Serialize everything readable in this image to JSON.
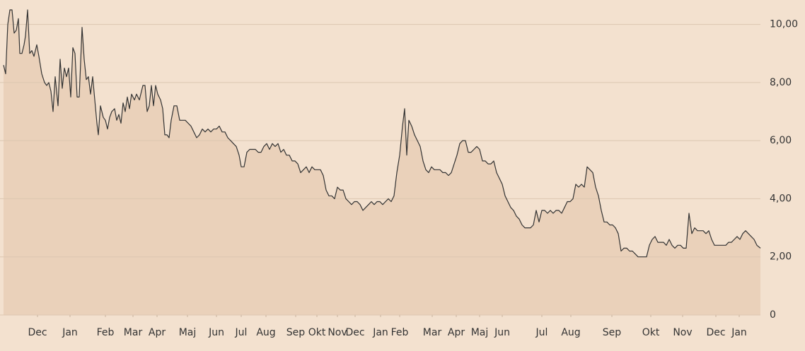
{
  "chart_data": {
    "type": "area",
    "color": "#333333",
    "fill": "#ead1ba",
    "grid": true,
    "xlim": [
      5,
      1075
    ],
    "ylim": [
      0,
      10.5
    ],
    "yticks": [
      0,
      {
        "value": 2,
        "label": "2,00"
      },
      {
        "value": 4,
        "label": "4,00"
      },
      {
        "value": 6,
        "label": "6,00"
      },
      {
        "value": 8,
        "label": "8,00"
      },
      {
        "value": 10,
        "label": "10,00"
      }
    ],
    "xticks": [
      {
        "value": 53,
        "label": "Dec"
      },
      {
        "value": 99,
        "label": "Jan"
      },
      {
        "value": 149,
        "label": "Feb"
      },
      {
        "value": 188,
        "label": "Mar"
      },
      {
        "value": 222,
        "label": "Apr"
      },
      {
        "value": 265,
        "label": "Maj"
      },
      {
        "value": 306,
        "label": "Jun"
      },
      {
        "value": 341,
        "label": "Jul"
      },
      {
        "value": 376,
        "label": "Aug"
      },
      {
        "value": 418,
        "label": "Sep"
      },
      {
        "value": 448,
        "label": "Okt"
      },
      {
        "value": 477,
        "label": "Nov"
      },
      {
        "value": 502,
        "label": "Dec"
      },
      {
        "value": 538,
        "label": "Jan"
      },
      {
        "value": 565,
        "label": "Feb"
      },
      {
        "value": 611,
        "label": "Mar"
      },
      {
        "value": 645,
        "label": "Apr"
      },
      {
        "value": 678,
        "label": "Maj"
      },
      {
        "value": 710,
        "label": "Jun"
      },
      {
        "value": 766,
        "label": "Jul"
      },
      {
        "value": 807,
        "label": "Aug"
      },
      {
        "value": 865,
        "label": "Sep"
      },
      {
        "value": 920,
        "label": "Okt"
      },
      {
        "value": 965,
        "label": "Nov"
      },
      {
        "value": 1012,
        "label": "Dec"
      },
      {
        "value": 1045,
        "label": "Jan"
      }
    ],
    "x": [
      5,
      8,
      11,
      14,
      17,
      20,
      23,
      26,
      28,
      31,
      34,
      36,
      39,
      42,
      45,
      48,
      52,
      55,
      59,
      63,
      66,
      69,
      72,
      75,
      78,
      82,
      85,
      88,
      91,
      94,
      97,
      100,
      103,
      106,
      109,
      112,
      116,
      119,
      122,
      125,
      128,
      131,
      134,
      137,
      139,
      142,
      146,
      149,
      152,
      155,
      158,
      162,
      165,
      168,
      171,
      174,
      177,
      180,
      183,
      186,
      190,
      193,
      197,
      202,
      205,
      208,
      211,
      214,
      217,
      220,
      223,
      227,
      230,
      233,
      236,
      239,
      242,
      246,
      250,
      254,
      258,
      262,
      266,
      270,
      274,
      278,
      282,
      286,
      290,
      294,
      298,
      302,
      306,
      310,
      314,
      318,
      322,
      326,
      330,
      334,
      338,
      341,
      345,
      349,
      353,
      357,
      361,
      365,
      369,
      373,
      377,
      381,
      385,
      389,
      393,
      397,
      401,
      405,
      409,
      413,
      417,
      421,
      425,
      429,
      433,
      437,
      441,
      445,
      449,
      453,
      457,
      461,
      465,
      469,
      473,
      477,
      481,
      485,
      489,
      493,
      497,
      501,
      505,
      509,
      513,
      517,
      521,
      525,
      529,
      533,
      537,
      541,
      545,
      549,
      553,
      557,
      561,
      565,
      569,
      572,
      575,
      578,
      582,
      586,
      590,
      594,
      598,
      602,
      606,
      610,
      614,
      618,
      622,
      626,
      630,
      634,
      638,
      642,
      646,
      650,
      654,
      658,
      662,
      666,
      670,
      674,
      678,
      682,
      686,
      690,
      694,
      698,
      702,
      706,
      710,
      714,
      718,
      722,
      726,
      730,
      734,
      738,
      742,
      746,
      750,
      754,
      758,
      762,
      766,
      770,
      774,
      778,
      782,
      786,
      790,
      794,
      798,
      802,
      806,
      810,
      814,
      818,
      822,
      826,
      830,
      834,
      838,
      842,
      846,
      850,
      854,
      858,
      862,
      866,
      870,
      874,
      878,
      882,
      886,
      890,
      894,
      898,
      902,
      906,
      910,
      914,
      918,
      922,
      926,
      930,
      934,
      938,
      942,
      946,
      950,
      954,
      958,
      962,
      966,
      970,
      974,
      978,
      982,
      986,
      990,
      994,
      998,
      1002,
      1006,
      1010,
      1014,
      1018,
      1022,
      1026,
      1030,
      1034,
      1038,
      1042,
      1046,
      1050,
      1054,
      1058,
      1062,
      1066,
      1070,
      1075
    ],
    "values": [
      8.6,
      8.3,
      10.0,
      10.5,
      10.5,
      9.7,
      9.8,
      10.2,
      9.0,
      9.0,
      9.3,
      9.6,
      10.5,
      9.0,
      9.1,
      8.9,
      9.3,
      8.9,
      8.3,
      8.0,
      7.9,
      8.0,
      7.7,
      7.0,
      8.2,
      7.2,
      8.8,
      7.8,
      8.5,
      8.2,
      8.5,
      7.5,
      9.2,
      9.0,
      7.5,
      7.5,
      9.9,
      8.8,
      8.1,
      8.2,
      7.6,
      8.2,
      7.4,
      6.6,
      6.2,
      7.2,
      6.8,
      6.7,
      6.4,
      6.8,
      7.0,
      7.1,
      6.7,
      6.9,
      6.6,
      7.3,
      7.0,
      7.5,
      7.1,
      7.6,
      7.4,
      7.6,
      7.4,
      7.9,
      7.9,
      7.0,
      7.2,
      7.9,
      7.2,
      7.9,
      7.6,
      7.4,
      7.1,
      6.2,
      6.2,
      6.1,
      6.7,
      7.2,
      7.2,
      6.7,
      6.7,
      6.7,
      6.6,
      6.5,
      6.3,
      6.1,
      6.2,
      6.4,
      6.3,
      6.4,
      6.3,
      6.4,
      6.4,
      6.5,
      6.3,
      6.3,
      6.1,
      6.0,
      5.9,
      5.8,
      5.5,
      5.1,
      5.1,
      5.6,
      5.7,
      5.7,
      5.7,
      5.6,
      5.6,
      5.8,
      5.9,
      5.7,
      5.9,
      5.8,
      5.9,
      5.6,
      5.7,
      5.5,
      5.5,
      5.3,
      5.3,
      5.2,
      4.9,
      5.0,
      5.1,
      4.9,
      5.1,
      5.0,
      5.0,
      5.0,
      4.8,
      4.3,
      4.1,
      4.1,
      4.0,
      4.4,
      4.3,
      4.3,
      4.0,
      3.9,
      3.8,
      3.9,
      3.9,
      3.8,
      3.6,
      3.7,
      3.8,
      3.9,
      3.8,
      3.9,
      3.9,
      3.8,
      3.9,
      4.0,
      3.9,
      4.1,
      4.9,
      5.5,
      6.5,
      7.1,
      5.5,
      6.7,
      6.5,
      6.2,
      6.0,
      5.8,
      5.3,
      5.0,
      4.9,
      5.1,
      5.0,
      5.0,
      5.0,
      4.9,
      4.9,
      4.8,
      4.9,
      5.2,
      5.5,
      5.9,
      6.0,
      6.0,
      5.6,
      5.6,
      5.7,
      5.8,
      5.7,
      5.3,
      5.3,
      5.2,
      5.2,
      5.3,
      4.9,
      4.7,
      4.5,
      4.1,
      3.9,
      3.7,
      3.6,
      3.4,
      3.3,
      3.1,
      3.0,
      3.0,
      3.0,
      3.1,
      3.6,
      3.2,
      3.6,
      3.6,
      3.5,
      3.6,
      3.5,
      3.6,
      3.6,
      3.5,
      3.7,
      3.9,
      3.9,
      4.0,
      4.5,
      4.4,
      4.5,
      4.4,
      5.1,
      5.0,
      4.9,
      4.4,
      4.1,
      3.6,
      3.2,
      3.2,
      3.1,
      3.1,
      3.0,
      2.8,
      2.2,
      2.3,
      2.3,
      2.2,
      2.2,
      2.1,
      2.0,
      2.0,
      2.0,
      2.0,
      2.4,
      2.6,
      2.7,
      2.5,
      2.5,
      2.5,
      2.4,
      2.6,
      2.4,
      2.3,
      2.4,
      2.4,
      2.3,
      2.3,
      3.5,
      2.8,
      3.0,
      2.9,
      2.9,
      2.9,
      2.8,
      2.9,
      2.6,
      2.4,
      2.4,
      2.4,
      2.4,
      2.4,
      2.5,
      2.5,
      2.6,
      2.7,
      2.6,
      2.8,
      2.9,
      2.8,
      2.7,
      2.6,
      2.4,
      2.3
    ]
  }
}
